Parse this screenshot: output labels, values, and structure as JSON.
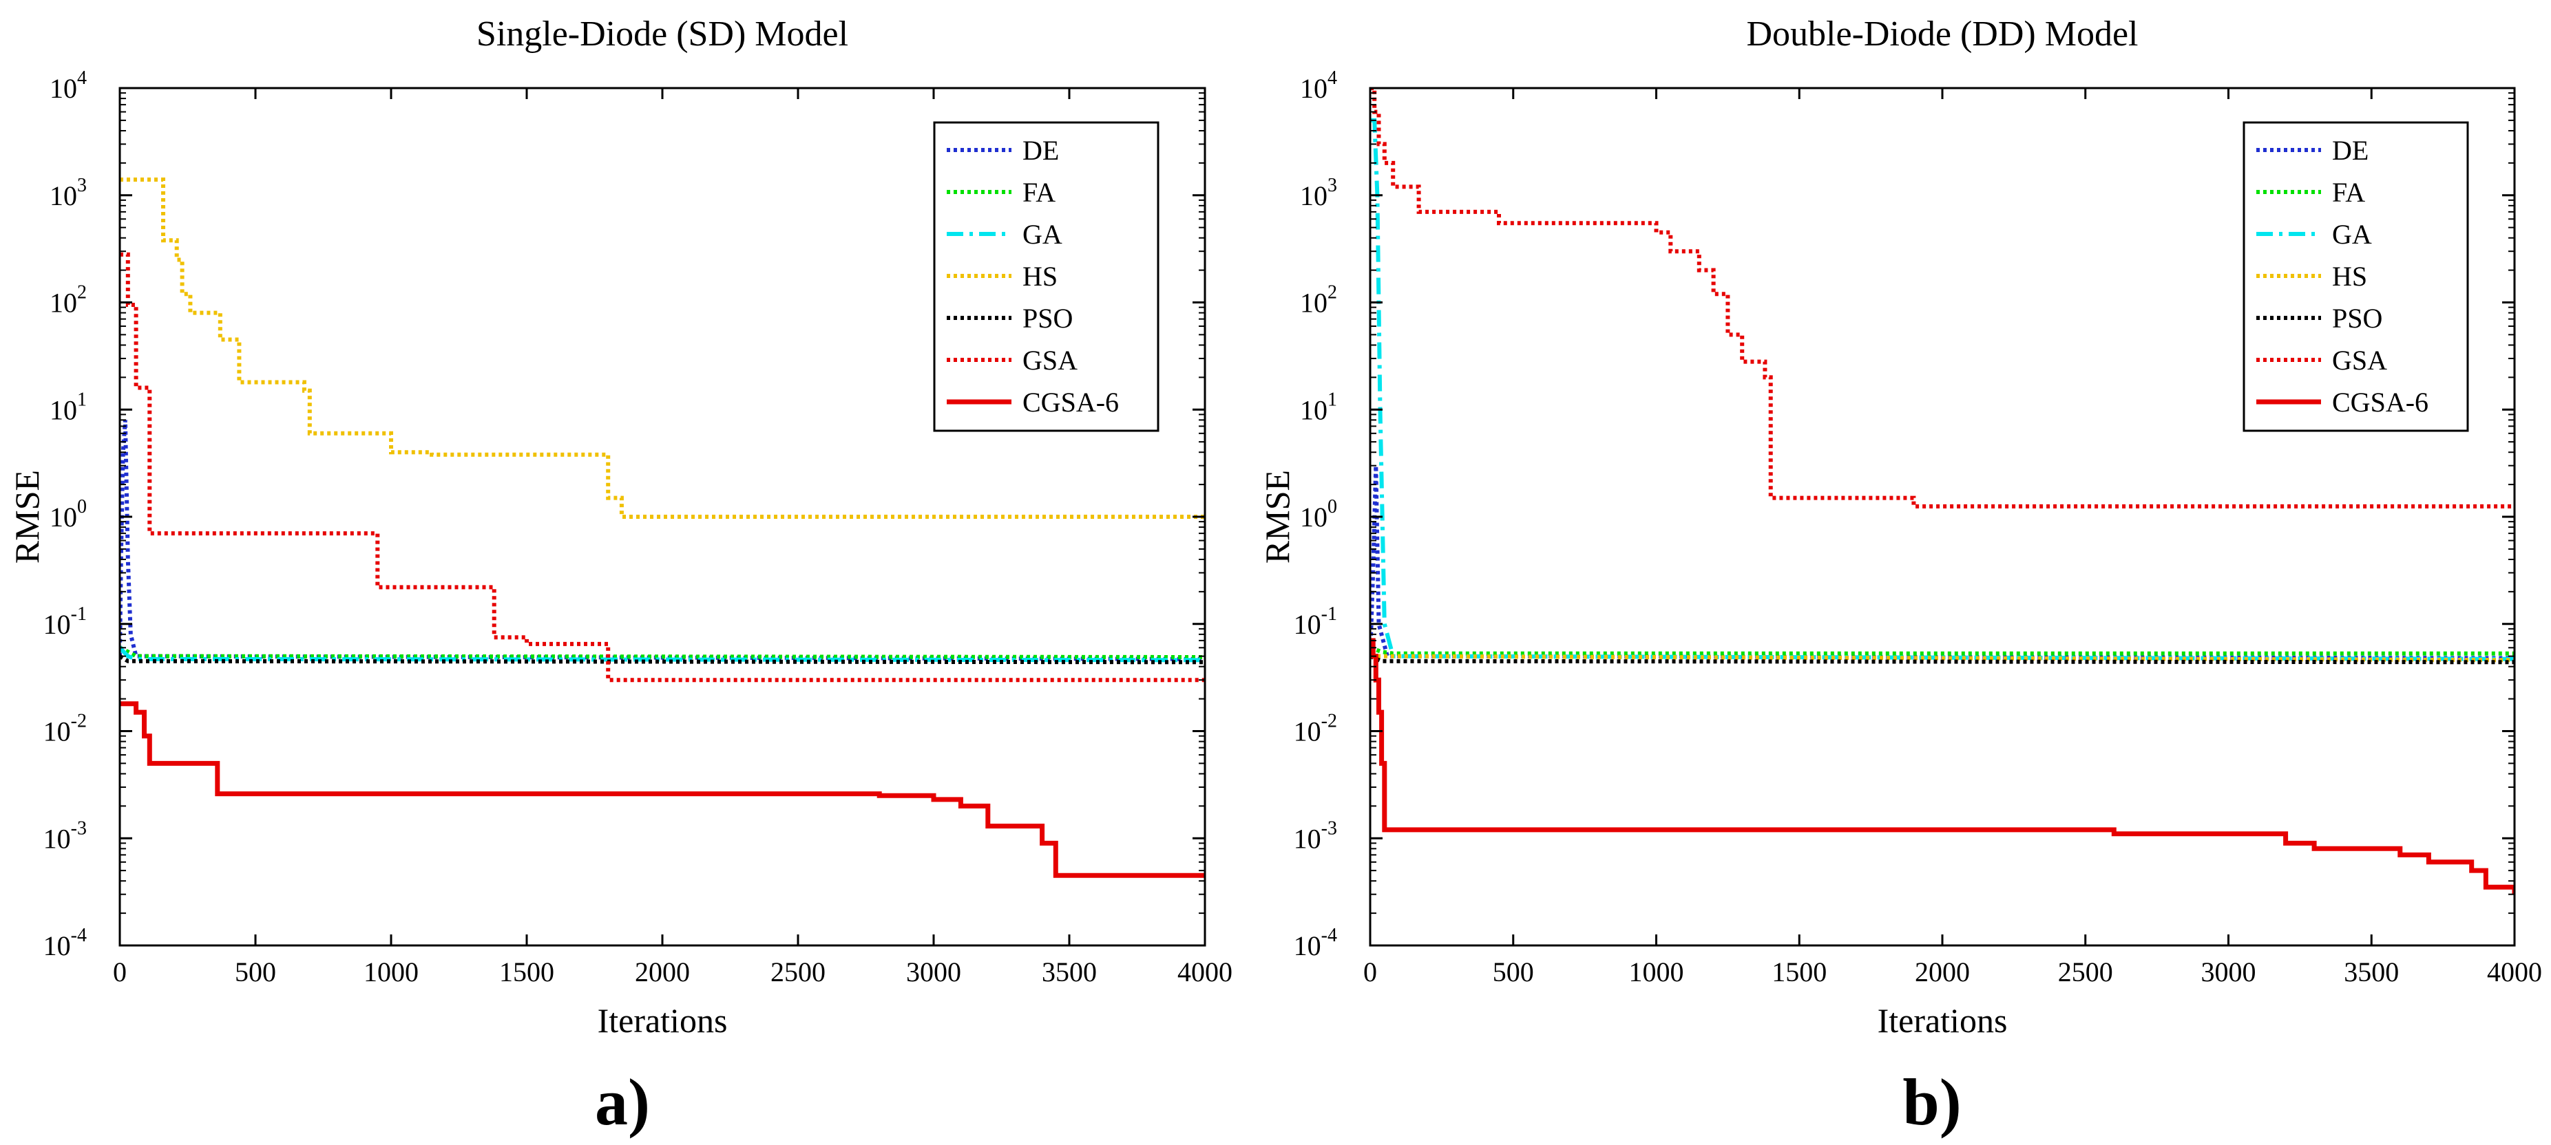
{
  "chart_data": [
    {
      "type": "line",
      "title": "Single-Diode (SD) Model",
      "xlabel": "Iterations",
      "ylabel": "RMSE",
      "panel_label": "a)",
      "xlim": [
        0,
        4000
      ],
      "ylim": [
        0.0001,
        10000
      ],
      "yscale": "log",
      "x_ticks": [
        "0",
        "500",
        "1000",
        "1500",
        "2000",
        "2500",
        "3000",
        "3500",
        "4000"
      ],
      "y_ticks": [
        {
          "base": "10",
          "exp": "-4"
        },
        {
          "base": "10",
          "exp": "-3"
        },
        {
          "base": "10",
          "exp": "-2"
        },
        {
          "base": "10",
          "exp": "-1"
        },
        {
          "base": "10",
          "exp": "0"
        },
        {
          "base": "10",
          "exp": "1"
        },
        {
          "base": "10",
          "exp": "2"
        },
        {
          "base": "10",
          "exp": "3"
        },
        {
          "base": "10",
          "exp": "4"
        }
      ],
      "legend_position": "top-right",
      "series": [
        {
          "name": "DE",
          "color": "#1f2fd0",
          "dash": "dotted",
          "step": false,
          "points": [
            [
              0,
              0.05
            ],
            [
              5,
              0.5
            ],
            [
              12,
              4
            ],
            [
              20,
              8
            ],
            [
              30,
              0.4
            ],
            [
              40,
              0.08
            ],
            [
              60,
              0.05
            ],
            [
              4000,
              0.047
            ]
          ]
        },
        {
          "name": "FA",
          "color": "#00e000",
          "dash": "dotted",
          "step": false,
          "points": [
            [
              0,
              0.06
            ],
            [
              30,
              0.055
            ],
            [
              60,
              0.05
            ],
            [
              4000,
              0.049
            ]
          ]
        },
        {
          "name": "GA",
          "color": "#00e5ee",
          "dash": "dashdot",
          "step": false,
          "points": [
            [
              0,
              0.06
            ],
            [
              30,
              0.05
            ],
            [
              60,
              0.047
            ],
            [
              4000,
              0.046
            ]
          ]
        },
        {
          "name": "HS",
          "color": "#f0c000",
          "dash": "dotted",
          "step": true,
          "points": [
            [
              0,
              1400
            ],
            [
              140,
              1400
            ],
            [
              160,
              380
            ],
            [
              210,
              250
            ],
            [
              230,
              120
            ],
            [
              260,
              80
            ],
            [
              370,
              45
            ],
            [
              440,
              18
            ],
            [
              680,
              15
            ],
            [
              700,
              6
            ],
            [
              1000,
              4
            ],
            [
              1150,
              3.8
            ],
            [
              1800,
              1.5
            ],
            [
              1850,
              1.0
            ],
            [
              4000,
              0.95
            ]
          ]
        },
        {
          "name": "PSO",
          "color": "#000000",
          "dash": "dotted",
          "step": false,
          "points": [
            [
              0,
              0.05
            ],
            [
              30,
              0.045
            ],
            [
              4000,
              0.044
            ]
          ]
        },
        {
          "name": "GSA",
          "color": "#e60000",
          "dash": "dotted",
          "step": true,
          "points": [
            [
              0,
              280
            ],
            [
              30,
              95
            ],
            [
              60,
              16
            ],
            [
              110,
              0.7
            ],
            [
              950,
              0.22
            ],
            [
              1380,
              0.075
            ],
            [
              1500,
              0.065
            ],
            [
              1800,
              0.03
            ],
            [
              4000,
              0.03
            ]
          ]
        },
        {
          "name": "CGSA-6",
          "color": "#e60000",
          "dash": "solid",
          "step": true,
          "points": [
            [
              0,
              0.018
            ],
            [
              60,
              0.015
            ],
            [
              90,
              0.009
            ],
            [
              110,
              0.005
            ],
            [
              360,
              0.0026
            ],
            [
              2800,
              0.0025
            ],
            [
              3000,
              0.0023
            ],
            [
              3100,
              0.002
            ],
            [
              3200,
              0.0013
            ],
            [
              3400,
              0.0009
            ],
            [
              3450,
              0.00045
            ],
            [
              4000,
              0.00045
            ]
          ]
        }
      ]
    },
    {
      "type": "line",
      "title": "Double-Diode (DD) Model",
      "xlabel": "Iterations",
      "ylabel": "RMSE",
      "panel_label": "b)",
      "xlim": [
        0,
        4000
      ],
      "ylim": [
        0.0001,
        10000
      ],
      "yscale": "log",
      "x_ticks": [
        "0",
        "500",
        "1000",
        "1500",
        "2000",
        "2500",
        "3000",
        "3500",
        "4000"
      ],
      "y_ticks": [
        {
          "base": "10",
          "exp": "-4"
        },
        {
          "base": "10",
          "exp": "-3"
        },
        {
          "base": "10",
          "exp": "-2"
        },
        {
          "base": "10",
          "exp": "-1"
        },
        {
          "base": "10",
          "exp": "0"
        },
        {
          "base": "10",
          "exp": "1"
        },
        {
          "base": "10",
          "exp": "2"
        },
        {
          "base": "10",
          "exp": "3"
        },
        {
          "base": "10",
          "exp": "4"
        }
      ],
      "legend_position": "top-right",
      "series": [
        {
          "name": "DE",
          "color": "#1f2fd0",
          "dash": "dotted",
          "step": false,
          "points": [
            [
              0,
              0.05
            ],
            [
              10,
              0.3
            ],
            [
              20,
              3
            ],
            [
              30,
              0.1
            ],
            [
              60,
              0.05
            ],
            [
              4000,
              0.048
            ]
          ]
        },
        {
          "name": "FA",
          "color": "#00e000",
          "dash": "dotted",
          "step": false,
          "points": [
            [
              0,
              0.06
            ],
            [
              40,
              0.055
            ],
            [
              80,
              0.053
            ],
            [
              4000,
              0.053
            ]
          ]
        },
        {
          "name": "GA",
          "color": "#00e5ee",
          "dash": "dashdot",
          "step": false,
          "points": [
            [
              0,
              5000
            ],
            [
              15,
              5000
            ],
            [
              25,
              1000
            ],
            [
              35,
              10
            ],
            [
              50,
              0.1
            ],
            [
              80,
              0.05
            ],
            [
              4000,
              0.047
            ]
          ]
        },
        {
          "name": "HS",
          "color": "#f0c000",
          "dash": "dotted",
          "step": false,
          "points": [
            [
              0,
              0.05
            ],
            [
              4000,
              0.046
            ]
          ]
        },
        {
          "name": "PSO",
          "color": "#000000",
          "dash": "dotted",
          "step": false,
          "points": [
            [
              0,
              0.05
            ],
            [
              40,
              0.045
            ],
            [
              4000,
              0.044
            ]
          ]
        },
        {
          "name": "GSA",
          "color": "#e60000",
          "dash": "dotted",
          "step": true,
          "points": [
            [
              0,
              10000
            ],
            [
              15,
              6000
            ],
            [
              30,
              3000
            ],
            [
              50,
              2000
            ],
            [
              80,
              1200
            ],
            [
              170,
              700
            ],
            [
              450,
              550
            ],
            [
              1000,
              450
            ],
            [
              1050,
              300
            ],
            [
              1150,
              200
            ],
            [
              1200,
              120
            ],
            [
              1250,
              50
            ],
            [
              1300,
              28
            ],
            [
              1380,
              20
            ],
            [
              1400,
              1.5
            ],
            [
              1900,
              1.25
            ],
            [
              4000,
              1.25
            ]
          ]
        },
        {
          "name": "CGSA-6",
          "color": "#e60000",
          "dash": "solid",
          "step": true,
          "points": [
            [
              0,
              0.07
            ],
            [
              10,
              0.05
            ],
            [
              20,
              0.03
            ],
            [
              30,
              0.015
            ],
            [
              40,
              0.005
            ],
            [
              50,
              0.0012
            ],
            [
              2600,
              0.0011
            ],
            [
              3200,
              0.0009
            ],
            [
              3300,
              0.0008
            ],
            [
              3600,
              0.0007
            ],
            [
              3700,
              0.0006
            ],
            [
              3850,
              0.0005
            ],
            [
              3900,
              0.00035
            ],
            [
              4000,
              0.0003
            ]
          ]
        }
      ]
    }
  ]
}
